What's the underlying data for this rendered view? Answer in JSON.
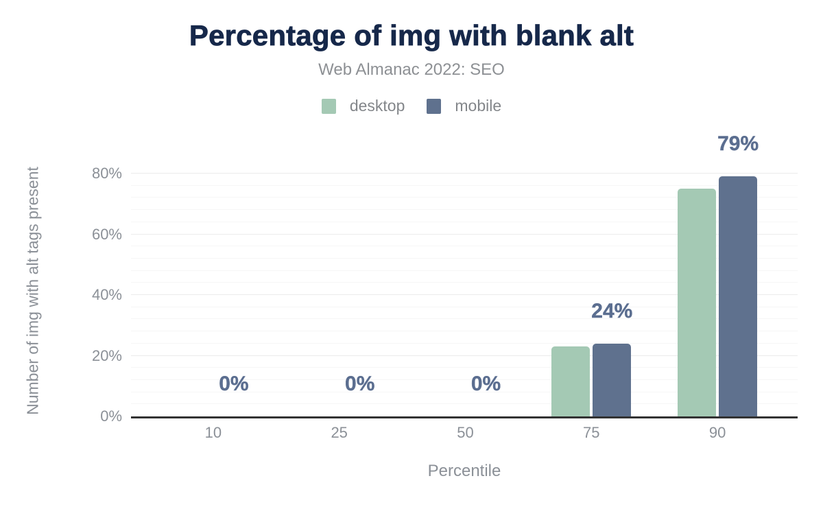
{
  "chart_data": {
    "type": "bar",
    "title": "Percentage of img with blank alt",
    "subtitle": "Web Almanac 2022: SEO",
    "categories": [
      "10",
      "25",
      "50",
      "75",
      "90"
    ],
    "series": [
      {
        "name": "desktop",
        "color": "#a4c9b4",
        "values": [
          0,
          0,
          0,
          23,
          75
        ]
      },
      {
        "name": "mobile",
        "color": "#5f718e",
        "values": [
          0,
          0,
          0,
          24,
          79
        ]
      }
    ],
    "value_labels": [
      "0%",
      "0%",
      "0%",
      "24%",
      "79%"
    ],
    "value_labels_series": "mobile",
    "xlabel": "Percentile",
    "ylabel": "Number of img with alt tags present",
    "ylim": [
      0,
      80
    ],
    "y_major_step": 20,
    "y_minor_step": 4,
    "y_tick_labels": [
      "0%",
      "20%",
      "40%",
      "60%",
      "80%"
    ],
    "grid": true,
    "legend_position": "top"
  },
  "colors": {
    "title": "#16284a",
    "subtitle": "#8d9094",
    "axis_text": "#8b9097",
    "legend_text": "#83868a",
    "value_label": "#5b6e90",
    "grid_major": "#ebebeb",
    "grid_minor": "#f6f6f6",
    "axis_line": "#323232",
    "background": "#ffffff"
  }
}
